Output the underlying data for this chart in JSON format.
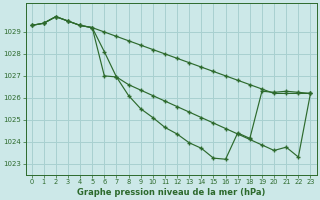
{
  "bg_color": "#cce8e8",
  "grid_color": "#a8d0d0",
  "line_color": "#2d6a2d",
  "title": "Graphe pression niveau de la mer (hPa)",
  "ylim": [
    1022.5,
    1030.3
  ],
  "xlim": [
    -0.5,
    23.5
  ],
  "yticks": [
    1023,
    1024,
    1025,
    1026,
    1027,
    1028,
    1029
  ],
  "xticks": [
    0,
    1,
    2,
    3,
    4,
    5,
    6,
    7,
    8,
    9,
    10,
    11,
    12,
    13,
    14,
    15,
    16,
    17,
    18,
    19,
    20,
    21,
    22,
    23
  ],
  "line1": [
    1029.3,
    1029.4,
    1029.7,
    1029.5,
    1029.3,
    1029.2,
    1028.1,
    1026.95,
    1026.1,
    1025.5,
    1025.1,
    1024.65,
    1024.35,
    1023.95,
    1023.7,
    1023.25,
    1023.2,
    1024.4,
    1024.15,
    1026.3,
    1026.25,
    1026.3,
    1026.25,
    1026.2
  ],
  "line2": [
    1029.3,
    1029.4,
    1029.7,
    1029.5,
    1029.3,
    1029.2,
    1027.0,
    1026.95,
    1026.6,
    1026.35,
    1026.1,
    1025.85,
    1025.6,
    1025.35,
    1025.1,
    1024.85,
    1024.6,
    1024.35,
    1024.1,
    1023.85,
    1023.6,
    1023.75,
    1023.3,
    1026.2
  ],
  "line3": [
    1029.3,
    1029.4,
    1029.7,
    1029.5,
    1029.3,
    1029.2,
    1029.0,
    1028.8,
    1028.6,
    1028.4,
    1028.2,
    1028.0,
    1027.8,
    1027.6,
    1027.4,
    1027.2,
    1027.0,
    1026.8,
    1026.6,
    1026.4,
    1026.2,
    1026.2,
    1026.2,
    1026.2
  ]
}
